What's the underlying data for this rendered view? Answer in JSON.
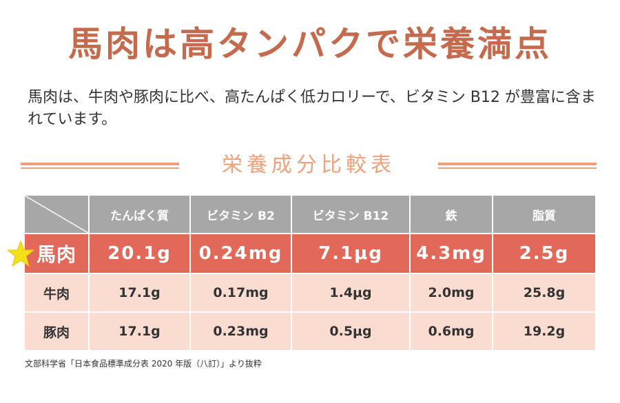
{
  "title": "馬肉は高タンパクで栄養満点",
  "lead": "馬肉は、牛肉や豚肉に比べ、高たんぱく低カロリーで、ビタミン B12 が豊富に含まれています。",
  "section_title": "栄養成分比較表",
  "table": {
    "headers": [
      "たんぱく質",
      "ビタミン B2",
      "ビタミン B12",
      "鉄",
      "脂質"
    ],
    "rows": [
      {
        "label": "馬肉",
        "values": [
          "20.1g",
          "0.24mg",
          "7.1μg",
          "4.3mg",
          "2.5g"
        ],
        "highlighted": true
      },
      {
        "label": "牛肉",
        "values": [
          "17.1g",
          "0.17mg",
          "1.4μg",
          "2.0mg",
          "25.8g"
        ],
        "highlighted": false
      },
      {
        "label": "豚肉",
        "values": [
          "17.1g",
          "0.23mg",
          "0.5μg",
          "0.6mg",
          "19.2g"
        ],
        "highlighted": false
      }
    ]
  },
  "source": "文部科学省「日本食品標準成分表 2020 年版（八訂）」より抜粋",
  "colors": {
    "title": "#c56a4c",
    "accent_rule": "#f0a17c",
    "header_bg": "#a7a7a7",
    "highlight_row": "#e2695a",
    "normal_row": "#fadcd1",
    "star": "#f2e11a"
  },
  "icons": {
    "star": "star-icon"
  }
}
